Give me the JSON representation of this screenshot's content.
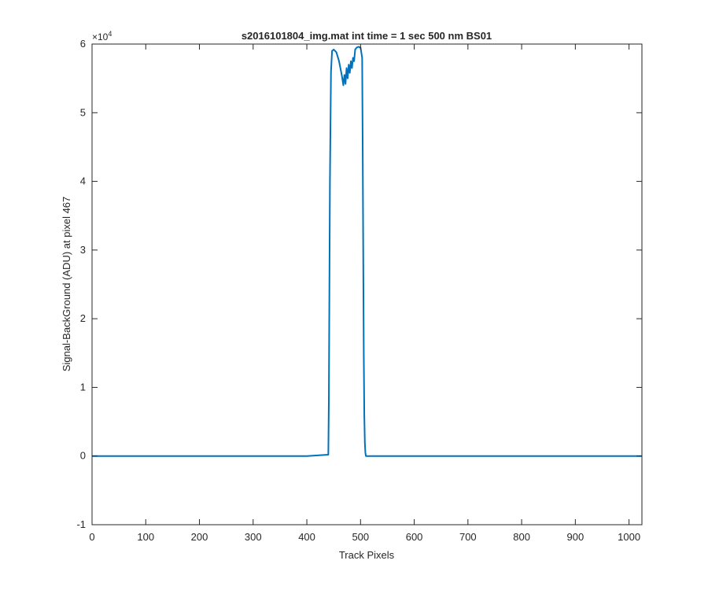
{
  "chart_data": {
    "type": "line",
    "title": "s2016101804_img.mat int time = 1 sec  500 nm BS01",
    "xlabel": "Track Pixels",
    "ylabel": "Signal-BackGround (ADU) at pixel 467",
    "xlim": [
      0,
      1024
    ],
    "ylim": [
      -10000,
      60000
    ],
    "x_ticks": [
      0,
      100,
      200,
      300,
      400,
      500,
      600,
      700,
      800,
      900,
      1000
    ],
    "x_tick_labels": [
      "0",
      "100",
      "200",
      "300",
      "400",
      "500",
      "600",
      "700",
      "800",
      "900",
      "1000"
    ],
    "y_ticks": [
      -10000,
      0,
      10000,
      20000,
      30000,
      40000,
      50000,
      60000
    ],
    "y_tick_labels": [
      "-1",
      "0",
      "1",
      "2",
      "3",
      "4",
      "5",
      "6"
    ],
    "y_exponent_base": "×10",
    "y_exponent_power": "4",
    "grid": false,
    "legend": false,
    "line_color": "#0072BD",
    "series": [
      {
        "x": [
          0,
          100,
          200,
          300,
          400,
          440,
          441,
          443,
          445,
          447,
          450,
          455,
          460,
          465,
          468,
          470,
          472,
          474,
          476,
          478,
          480,
          482,
          484,
          486,
          488,
          490,
          493,
          496,
          500,
          503,
          504,
          505,
          506,
          507,
          508,
          509,
          510,
          520,
          600,
          700,
          800,
          900,
          1024
        ],
        "y": [
          0,
          0,
          0,
          0,
          0,
          200,
          8000,
          40000,
          56000,
          59000,
          59200,
          58800,
          57500,
          55500,
          54000,
          55500,
          54200,
          56500,
          55000,
          57000,
          55800,
          57500,
          56500,
          58000,
          57500,
          59200,
          59500,
          59600,
          59500,
          58000,
          45000,
          30000,
          15000,
          6000,
          2000,
          500,
          0,
          0,
          0,
          0,
          0,
          0,
          0
        ]
      }
    ]
  }
}
